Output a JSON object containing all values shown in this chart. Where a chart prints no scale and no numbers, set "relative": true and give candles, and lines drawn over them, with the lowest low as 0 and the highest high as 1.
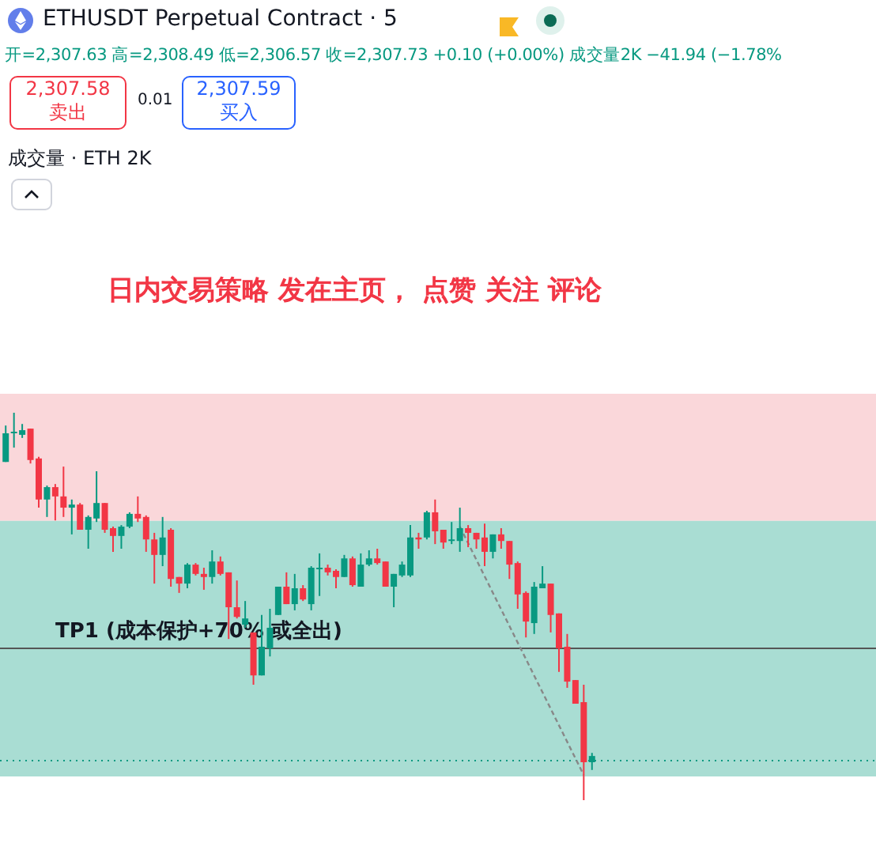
{
  "chart_data": {
    "type": "candlestick",
    "relative": true,
    "title": "ETHUSDT Perpetual Contract · 5",
    "annotations": [
      "开=2,307.63 高=2,308.49 低=2,306.57 收=2,307.73 +0.10 (+0.00%) 成交量2K −41.94 (−1.78%",
      "2,307.58",
      "卖出",
      "0.01",
      "2,307.59",
      "买入",
      "成交量 · ETH 2K",
      "日内交易策略 发在主页， 点赞 关注 评论"
    ],
    "categories": [
      null,
      null,
      null,
      null,
      null,
      null,
      null,
      null,
      null,
      null,
      null,
      null,
      null,
      null,
      null,
      null,
      null,
      null,
      null,
      null,
      null,
      null,
      null,
      null,
      null,
      null,
      null,
      null,
      null,
      null,
      null,
      null,
      null,
      null,
      null,
      null,
      null,
      null,
      null,
      null,
      null,
      null,
      null,
      null,
      null,
      null,
      null,
      null,
      null,
      null,
      null,
      null,
      null,
      null,
      null,
      null,
      null,
      null,
      null,
      null,
      null,
      null,
      null,
      null,
      null,
      null,
      null,
      null,
      null,
      null,
      null,
      null
    ],
    "ohlc": [
      [
        0.873,
        0.967,
        0.873,
        0.947
      ],
      [
        0.947,
        1,
        0.91,
        0.951
      ],
      [
        0.943,
        0.971,
        0.935,
        0.955
      ],
      [
        0.959,
        0.959,
        0.869,
        0.878
      ],
      [
        0.882,
        0.886,
        0.755,
        0.776
      ],
      [
        0.776,
        0.812,
        0.731,
        0.808
      ],
      [
        0.808,
        0.816,
        0.722,
        0.784
      ],
      [
        0.784,
        0.861,
        0.731,
        0.755
      ],
      [
        0.755,
        0.776,
        0.686,
        0.763
      ],
      [
        0.763,
        0.767,
        0.698,
        0.698
      ],
      [
        0.698,
        0.735,
        0.649,
        0.731
      ],
      [
        0.727,
        0.849,
        0.718,
        0.767
      ],
      [
        0.767,
        0.767,
        0.69,
        0.698
      ],
      [
        0.702,
        0.706,
        0.641,
        0.682
      ],
      [
        0.682,
        0.71,
        0.649,
        0.706
      ],
      [
        0.706,
        0.743,
        0.702,
        0.739
      ],
      [
        0.739,
        0.784,
        0.718,
        0.727
      ],
      [
        0.731,
        0.735,
        0.641,
        0.673
      ],
      [
        0.673,
        0.69,
        0.559,
        0.633
      ],
      [
        0.633,
        0.731,
        0.604,
        0.678
      ],
      [
        0.698,
        0.702,
        0.551,
        0.571
      ],
      [
        0.576,
        0.576,
        0.535,
        0.559
      ],
      [
        0.559,
        0.612,
        0.547,
        0.608
      ],
      [
        0.608,
        0.612,
        0.58,
        0.584
      ],
      [
        0.584,
        0.6,
        0.543,
        0.576
      ],
      [
        0.576,
        0.645,
        0.559,
        0.616
      ],
      [
        0.616,
        0.629,
        0.58,
        0.584
      ],
      [
        0.588,
        0.588,
        0.416,
        0.498
      ],
      [
        0.498,
        0.567,
        0.469,
        0.473
      ],
      [
        0.453,
        0.514,
        0.445,
        0.469
      ],
      [
        0.433,
        0.433,
        0.298,
        0.322
      ],
      [
        0.322,
        0.478,
        0.322,
        0.396
      ],
      [
        0.392,
        0.494,
        0.371,
        0.445
      ],
      [
        0.478,
        0.551,
        0.478,
        0.551
      ],
      [
        0.551,
        0.588,
        0.506,
        0.506
      ],
      [
        0.506,
        0.584,
        0.49,
        0.547
      ],
      [
        0.547,
        0.555,
        0.514,
        0.518
      ],
      [
        0.506,
        0.604,
        0.49,
        0.6
      ],
      [
        0.596,
        0.637,
        0.527,
        0.6
      ],
      [
        0.6,
        0.608,
        0.58,
        0.588
      ],
      [
        0.592,
        0.596,
        0.547,
        0.576
      ],
      [
        0.576,
        0.633,
        0.576,
        0.624
      ],
      [
        0.624,
        0.629,
        0.551,
        0.555
      ],
      [
        0.551,
        0.637,
        0.551,
        0.608
      ],
      [
        0.608,
        0.645,
        0.604,
        0.624
      ],
      [
        0.624,
        0.649,
        0.608,
        0.612
      ],
      [
        0.616,
        0.616,
        0.551,
        0.551
      ],
      [
        0.551,
        0.584,
        0.498,
        0.584
      ],
      [
        0.58,
        0.616,
        0.576,
        0.608
      ],
      [
        0.58,
        0.71,
        0.576,
        0.678
      ],
      [
        0.678,
        0.69,
        0.649,
        0.673
      ],
      [
        0.678,
        0.747,
        0.673,
        0.743
      ],
      [
        0.743,
        0.776,
        0.661,
        0.694
      ],
      [
        0.698,
        0.698,
        0.649,
        0.665
      ],
      [
        0.669,
        0.718,
        0.661,
        0.673
      ],
      [
        0.669,
        0.755,
        0.641,
        0.702
      ],
      [
        0.702,
        0.71,
        0.653,
        0.69
      ],
      [
        0.69,
        0.69,
        0.649,
        0.673
      ],
      [
        0.678,
        0.714,
        0.604,
        0.641
      ],
      [
        0.641,
        0.686,
        0.624,
        0.686
      ],
      [
        0.686,
        0.702,
        0.649,
        0.669
      ],
      [
        0.669,
        0.669,
        0.571,
        0.608
      ],
      [
        0.612,
        0.616,
        0.494,
        0.531
      ],
      [
        0.535,
        0.539,
        0.42,
        0.461
      ],
      [
        0.457,
        0.563,
        0.429,
        0.551
      ],
      [
        0.547,
        0.604,
        0.547,
        0.559
      ],
      [
        0.559,
        0.559,
        0.433,
        0.478
      ],
      [
        0.482,
        0.482,
        0.331,
        0.392
      ],
      [
        0.396,
        0.429,
        0.29,
        0.306
      ],
      [
        0.31,
        0.31,
        0.249,
        0.249
      ],
      [
        0.253,
        0.298,
        0,
        0.098
      ],
      [
        0.098,
        0.122,
        0.078,
        0.114
      ]
    ],
    "colors": [
      "#089981",
      "#089981",
      "#089981",
      "#f23645",
      "#f23645",
      "#089981",
      "#f23645",
      "#f23645",
      "#089981",
      "#f23645",
      "#089981",
      "#089981",
      "#f23645",
      "#f23645",
      "#089981",
      "#089981",
      "#f23645",
      "#f23645",
      "#f23645",
      "#089981",
      "#f23645",
      "#f23645",
      "#089981",
      "#f23645",
      "#f23645",
      "#089981",
      "#f23645",
      "#f23645",
      "#f23645",
      "#089981",
      "#f23645",
      "#089981",
      "#089981",
      "#089981",
      "#f23645",
      "#089981",
      "#f23645",
      "#089981",
      "#089981",
      "#f23645",
      "#f23645",
      "#089981",
      "#f23645",
      "#089981",
      "#089981",
      "#f23645",
      "#f23645",
      "#089981",
      "#089981",
      "#089981",
      "#f23645",
      "#089981",
      "#f23645",
      "#f23645",
      "#089981",
      "#089981",
      "#f23645",
      "#f23645",
      "#f23645",
      "#089981",
      "#f23645",
      "#f23645",
      "#f23645",
      "#f23645",
      "#089981",
      "#089981",
      "#f23645",
      "#f23645",
      "#f23645",
      "#f23645",
      "#f23645",
      "#089981"
    ],
    "series": [
      {
        "type": "line",
        "color": "#888888",
        "line_style": "dashed",
        "values": [
          null,
          null,
          null,
          null,
          null,
          null,
          null,
          null,
          null,
          null,
          null,
          null,
          null,
          null,
          null,
          null,
          null,
          null,
          null,
          null,
          null,
          null,
          null,
          null,
          null,
          null,
          null,
          null,
          null,
          null,
          null,
          null,
          null,
          null,
          null,
          null,
          null,
          null,
          null,
          null,
          null,
          null,
          null,
          null,
          null,
          null,
          null,
          null,
          null,
          null,
          null,
          null,
          null,
          null,
          null,
          0.706,
          null,
          null,
          null,
          null,
          null,
          null,
          null,
          null,
          null,
          null,
          null,
          null,
          null,
          null,
          0.065,
          null
        ]
      }
    ],
    "ref_lines": [
      {
        "axis": "y",
        "value": 0.392,
        "label": "TP1 (成本保护+70% 或全出)",
        "color": "#555555"
      },
      {
        "axis": "y",
        "value": 0.102,
        "color": "#089981",
        "line_style": "dotted"
      }
    ],
    "bands": [
      {
        "axis": "y",
        "from": 0.721,
        "to": 1.049,
        "color": "#fad7da"
      },
      {
        "axis": "y",
        "from": 0.061,
        "to": 0.721,
        "color": "#a9ddd3"
      }
    ]
  }
}
